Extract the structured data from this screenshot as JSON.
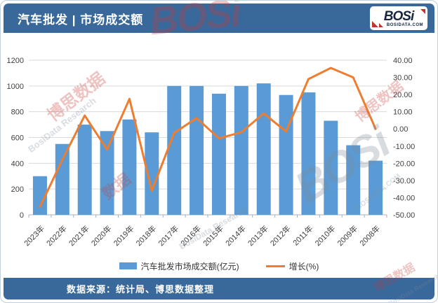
{
  "header": {
    "title": "汽车批发 | 市场成交额",
    "logo": {
      "name": "BOSi",
      "domain": "BOSIDATA.COM"
    }
  },
  "footer": {
    "source": "数据来源：统计局、博思数据整理"
  },
  "legend": [
    {
      "label": "汽车批发市场成交额(亿元)",
      "color": "#5B9BD5",
      "type": "bar"
    },
    {
      "label": "增长(%)",
      "color": "#ED7D31",
      "type": "line"
    }
  ],
  "watermarks": {
    "cn": "博思数据",
    "en": "BosiData Research",
    "logo": "BOSi",
    "short": "数据",
    "site": "BOSIDATA.COM"
  },
  "colors": {
    "brand_blue": "#39689B",
    "bar_blue": "#5B9BD5",
    "line_orange": "#ED7D31",
    "logo_red": "#C13530",
    "logo_navy": "#17253F",
    "gridline": "#d9d9d9"
  },
  "chart_data": {
    "type": "bar+line combo",
    "categories": [
      "2023年",
      "2022年",
      "2021年",
      "2020年",
      "2019年",
      "2018年",
      "2017年",
      "2016年",
      "2015年",
      "2014年",
      "2013年",
      "2012年",
      "2011年",
      "2010年",
      "2009年",
      "2008年"
    ],
    "series": [
      {
        "name": "汽车批发市场成交额(亿元)",
        "type": "bar",
        "axis": "left",
        "color": "#5B9BD5",
        "values": [
          300,
          550,
          700,
          650,
          740,
          640,
          1000,
          1000,
          940,
          1000,
          1020,
          930,
          950,
          730,
          540,
          420
        ]
      },
      {
        "name": "增长(%)",
        "type": "line",
        "axis": "right",
        "color": "#ED7D31",
        "values": [
          -45.3,
          -18.0,
          7.8,
          -12.0,
          17.5,
          -36.0,
          -2.3,
          6.3,
          -5.5,
          -2.0,
          9.0,
          -1.5,
          29.0,
          35.5,
          30.0,
          0.0
        ]
      }
    ],
    "left_axis": {
      "min": 0,
      "max": 1200,
      "ticks": [
        0,
        200,
        400,
        600,
        800,
        1000,
        1200
      ]
    },
    "right_axis": {
      "min": -50,
      "max": 40,
      "ticks": [
        40,
        30,
        20,
        10,
        0,
        -10,
        -20,
        -30,
        -40,
        -50
      ],
      "decimals": 2
    },
    "grid": "horizontal",
    "legend_position": "bottom",
    "x_label_rotation": -45
  }
}
